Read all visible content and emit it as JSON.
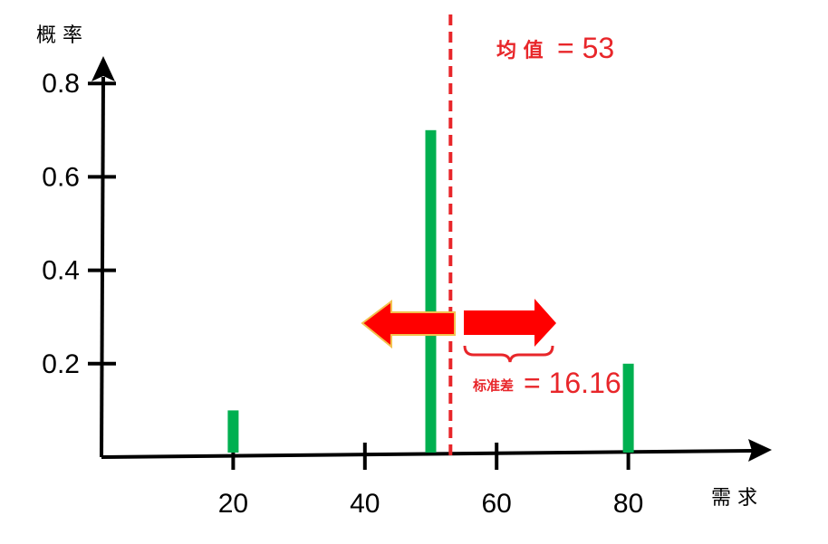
{
  "chart_data": {
    "type": "bar",
    "ylabel": "概 率",
    "xlabel": "需 求",
    "x": [
      20,
      50,
      80
    ],
    "values": [
      0.1,
      0.7,
      0.2
    ],
    "xticks": [
      20,
      40,
      60,
      80
    ],
    "yticks": [
      0.2,
      0.4,
      0.6,
      0.8
    ],
    "xlim": [
      0,
      100
    ],
    "ylim": [
      0,
      0.9
    ],
    "grid": false,
    "mean": {
      "value": 53,
      "label": "均 值",
      "text": "= 53"
    },
    "std": {
      "value": 16.16,
      "label": "标准差",
      "text": "= 16.16"
    },
    "colors": {
      "bar": "#00b050",
      "annotation": "#e8262a",
      "arrow": "#ff0000",
      "arrow_outline": "#f2c14e",
      "axis": "#000000"
    }
  }
}
